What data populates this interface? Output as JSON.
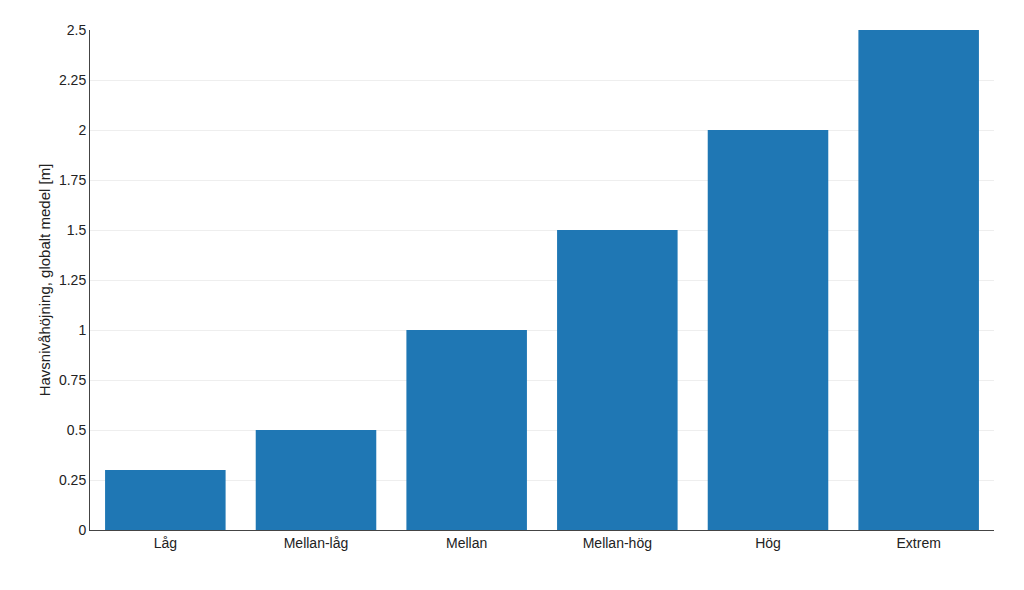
{
  "chart_data": {
    "type": "bar",
    "categories": [
      "Låg",
      "Mellan-låg",
      "Mellan",
      "Mellan-hög",
      "Hög",
      "Extrem"
    ],
    "values": [
      0.3,
      0.5,
      1,
      1.5,
      2,
      2.5
    ],
    "color": "#1f77b4",
    "ylabel": "Havsnivåhöjning, globalt medel [m]",
    "ylim": [
      0,
      2.5
    ],
    "yticks": [
      0,
      0.25,
      0.5,
      0.75,
      1,
      1.25,
      1.5,
      1.75,
      2,
      2.25,
      2.5
    ],
    "grid": true
  }
}
